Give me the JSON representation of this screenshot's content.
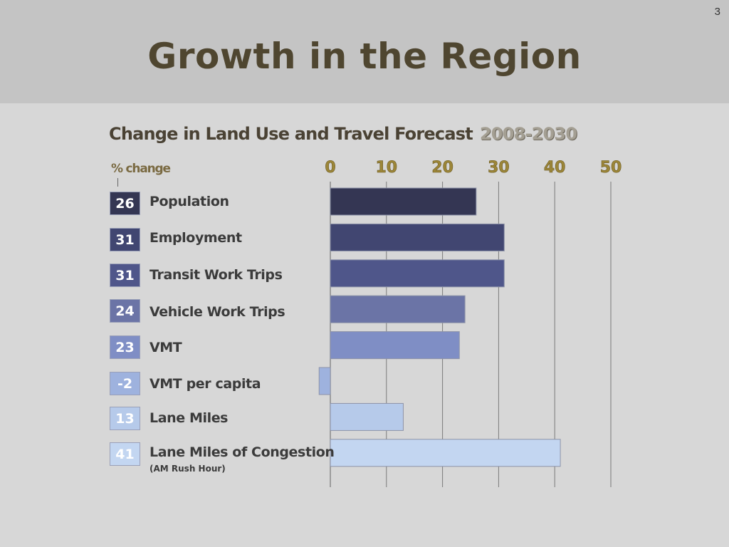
{
  "slide": {
    "number": "3",
    "title": "Growth in the Region"
  },
  "chart_data": {
    "type": "bar",
    "orientation": "horizontal",
    "title": "Change in Land Use and Travel Forecast",
    "subtitle": "2008-2030",
    "value_label": "% change",
    "xlim": [
      0,
      50
    ],
    "xticks": [
      0,
      10,
      20,
      30,
      40,
      50
    ],
    "grid": true,
    "categories": [
      "Population",
      "Employment",
      "Transit Work Trips",
      "Vehicle Work Trips",
      "VMT",
      "VMT per capita",
      "Lane Miles",
      "Lane Miles of Congestion"
    ],
    "values": [
      26,
      31,
      31,
      24,
      23,
      -2,
      13,
      41
    ],
    "value_labels": [
      "26",
      "31",
      "31",
      "24",
      "23",
      "-2",
      "13",
      "41"
    ],
    "notes": {
      "Lane Miles of Congestion": "(AM Rush Hour)"
    },
    "bar_colors": [
      "#343653",
      "#414671",
      "#4f568a",
      "#6b74a6",
      "#7f8ec5",
      "#9eb2de",
      "#b6caea",
      "#c3d6f1"
    ],
    "badge_text_colors": [
      "#ffffff",
      "#ffffff",
      "#ffffff",
      "#ffffff",
      "#ffffff",
      "#ffffff",
      "#ffffff",
      "#ffffff"
    ]
  }
}
